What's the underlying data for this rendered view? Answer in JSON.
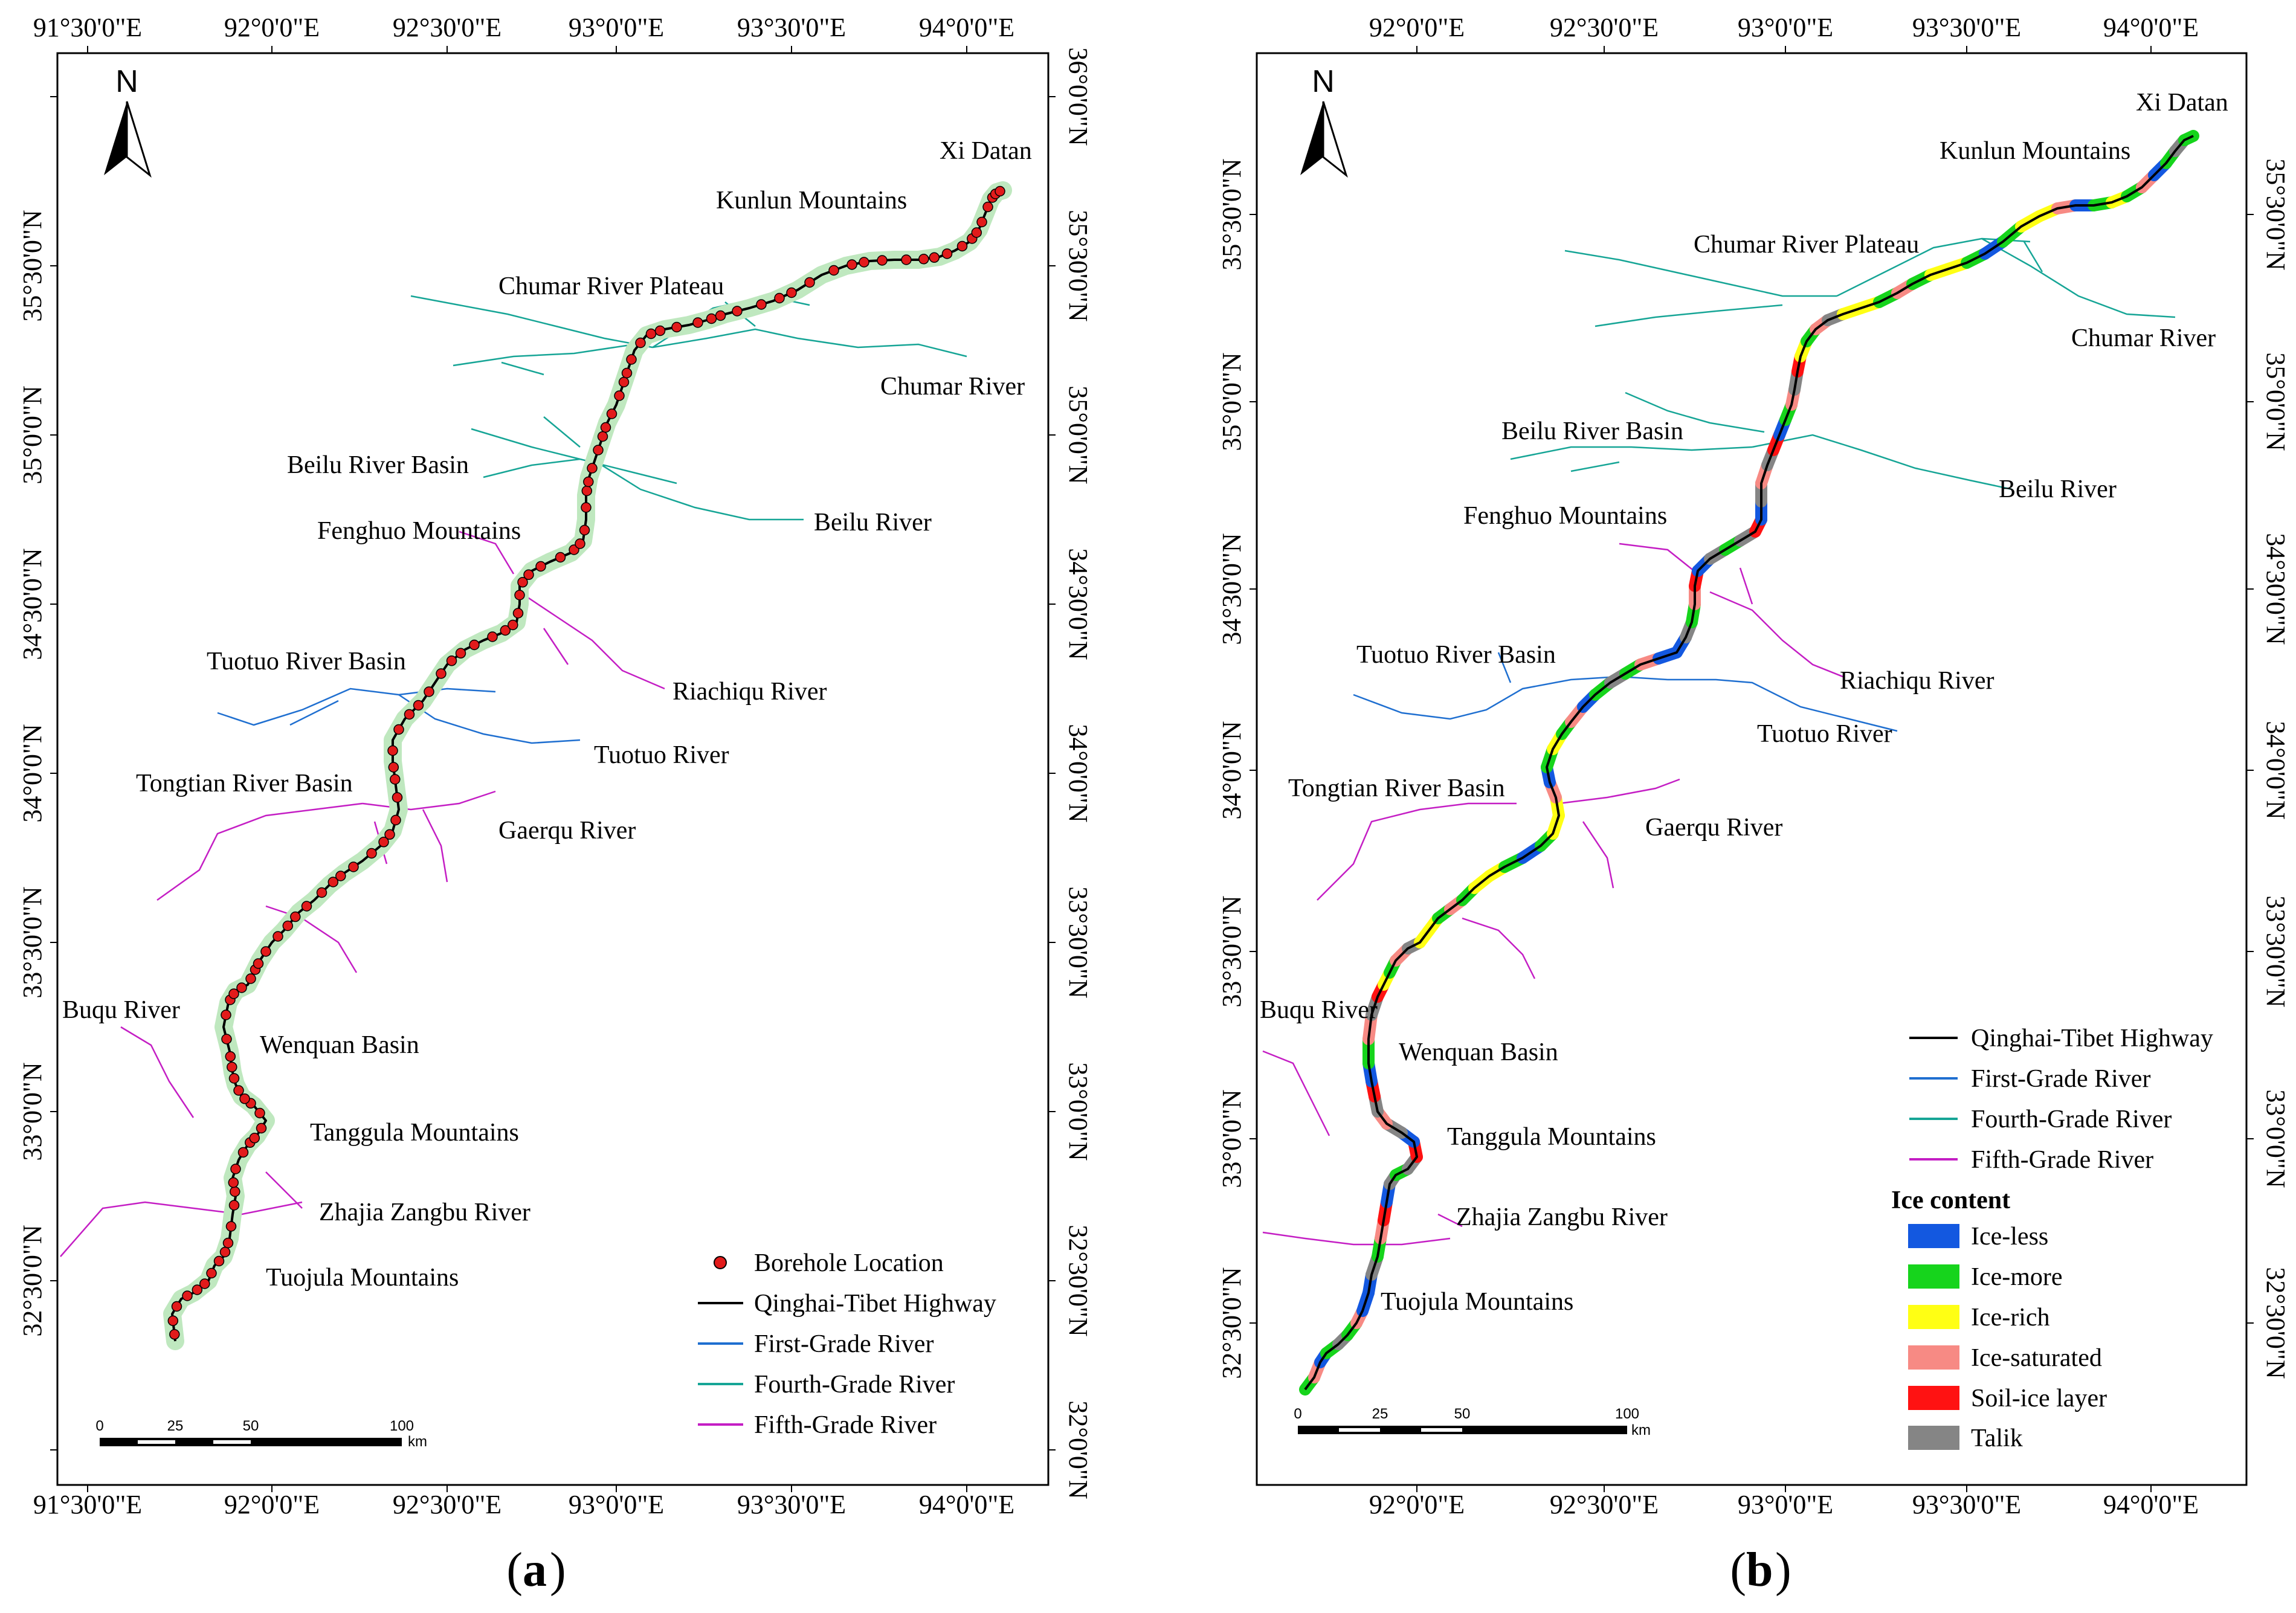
{
  "panel_a": {
    "label_open": "(",
    "label_letter": "a",
    "label_close": ")",
    "north": "N",
    "lon_labels": [
      "91°30'0\"E",
      "92°0'0\"E",
      "92°30'0\"E",
      "93°0'0\"E",
      "93°30'0\"E",
      "94°0'0\"E"
    ],
    "lat_labels": [
      "36°0'0\"N",
      "35°30'0\"N",
      "35°0'0\"N",
      "34°30'0\"N",
      "34°0'0\"N",
      "33°30'0\"N",
      "33°0'0\"N",
      "32°30'0\"N",
      "32°0'0\"N"
    ],
    "places": {
      "xi_datan": "Xi Datan",
      "kunlun": "Kunlun Mountains",
      "chumar_plateau": "Chumar River Plateau",
      "chumar_river": "Chumar River",
      "beilu_basin": "Beilu River Basin",
      "beilu_river": "Beilu River",
      "fenghuo": "Fenghuo Mountains",
      "riachiqu": "Riachiqu River",
      "tuotuo_basin": "Tuotuo River Basin",
      "tuotuo_river": "Tuotuo River",
      "tongtian": "Tongtian River Basin",
      "gaerqu": "Gaerqu River",
      "buqu": "Buqu River",
      "wenquan": "Wenquan Basin",
      "tanggula": "Tanggula Mountains",
      "zhajia": "Zhajia Zangbu River",
      "tuojula": "Tuojula Mountains"
    },
    "legend": {
      "borehole": "Borehole Location",
      "highway": "Qinghai-Tibet Highway",
      "first": "First-Grade River",
      "fourth": "Fourth-Grade River",
      "fifth": "Fifth-Grade River"
    },
    "scale": {
      "t0": "0",
      "t1": "25",
      "t2": "50",
      "t3": "100",
      "unit": "km"
    }
  },
  "panel_b": {
    "label_open": "(",
    "label_letter": "b",
    "label_close": ")",
    "north": "N",
    "lon_labels": [
      "92°0'0\"E",
      "92°30'0\"E",
      "93°0'0\"E",
      "93°30'0\"E",
      "94°0'0\"E"
    ],
    "lat_labels": [
      "35°30'0\"N",
      "35°0'0\"N",
      "34°30'0\"N",
      "34°0'0\"N",
      "33°30'0\"N",
      "33°0'0\"N",
      "32°30'0\"N"
    ],
    "places": {
      "xi_datan": "Xi Datan",
      "kunlun": "Kunlun Mountains",
      "chumar_plateau": "Chumar River Plateau",
      "chumar_river": "Chumar River",
      "beilu_basin": "Beilu River Basin",
      "beilu_river": "Beilu River",
      "fenghuo": "Fenghuo Mountains",
      "riachiqu": "Riachiqu River",
      "tuotuo_basin": "Tuotuo River Basin",
      "tuotuo_river": "Tuotuo River",
      "tongtian": "Tongtian River Basin",
      "gaerqu": "Gaerqu River",
      "buqu": "Buqu River",
      "wenquan": "Wenquan Basin",
      "tanggula": "Tanggula Mountains",
      "zhajia": "Zhajia Zangbu River",
      "tuojula": "Tuojula Mountains"
    },
    "legend": {
      "highway": "Qinghai-Tibet Highway",
      "first": "First-Grade River",
      "fourth": "Fourth-Grade River",
      "fifth": "Fifth-Grade River",
      "ice_title": "Ice content",
      "ice_less": "Ice-less",
      "ice_more": "Ice-more",
      "ice_rich": "Ice-rich",
      "ice_saturated": "Ice-saturated",
      "soil_ice": "Soil-ice layer",
      "talik": "Talik"
    },
    "scale": {
      "t0": "0",
      "t1": "25",
      "t2": "50",
      "t3": "100",
      "unit": "km"
    }
  },
  "colors": {
    "first_grade": "#1f6fd0",
    "fourth_grade": "#16a596",
    "fifth_grade": "#c41ec4",
    "borehole": "#e21b1b",
    "buffer": "#bfe8bf",
    "ice_less": "#1358e0",
    "ice_more": "#16d41c",
    "ice_rich": "#ffff14",
    "ice_saturated": "#f78a84",
    "soil_ice": "#ff1212",
    "talik": "#858585"
  }
}
